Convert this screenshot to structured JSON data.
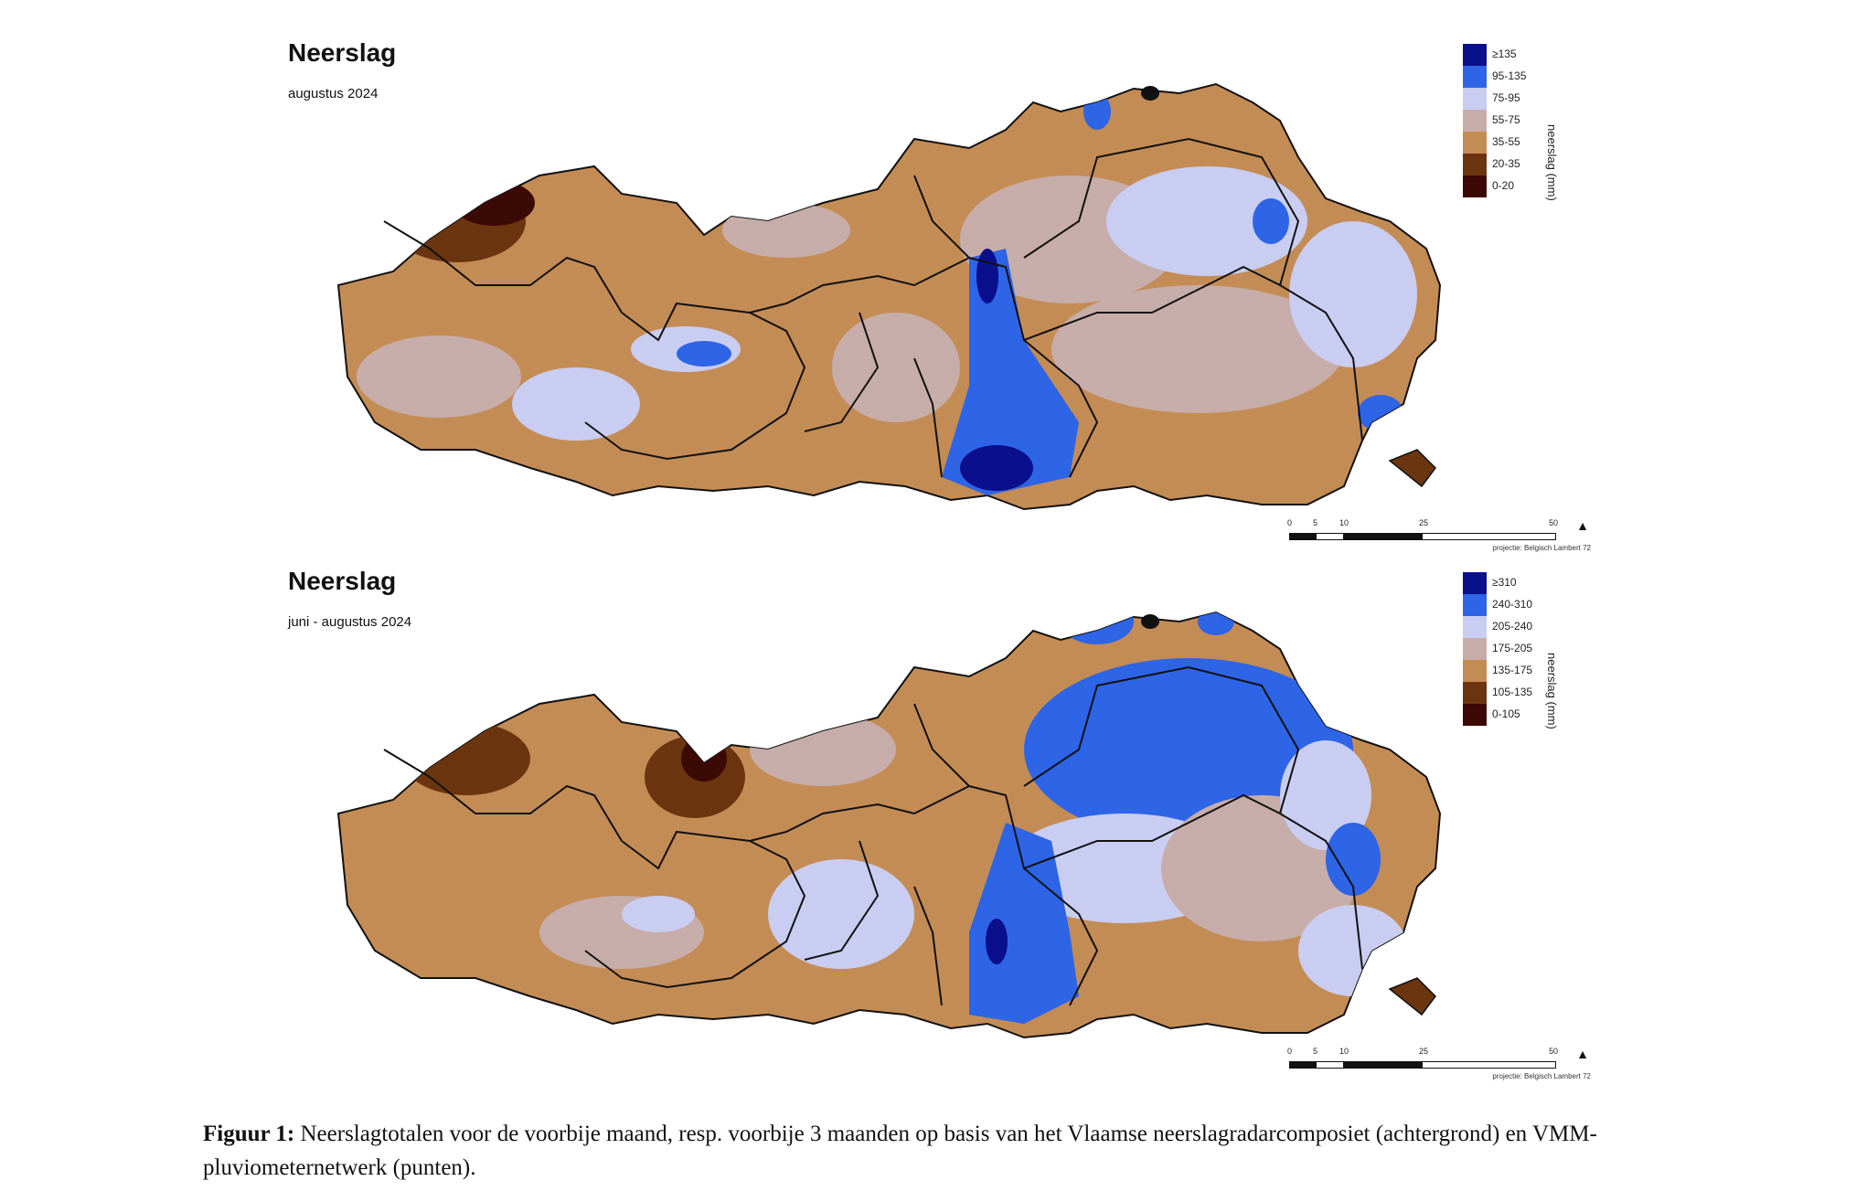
{
  "panels": [
    {
      "title": "Neerslag",
      "subtitle": "augustus 2024",
      "legend": {
        "unit": "neerslag (mm)",
        "classes": [
          {
            "label": "≥135",
            "color": "#0a0f8c"
          },
          {
            "label": "95-135",
            "color": "#2e64e6"
          },
          {
            "label": "75-95",
            "color": "#c9cdf2"
          },
          {
            "label": "55-75",
            "color": "#c7adaa"
          },
          {
            "label": "35-55",
            "color": "#c48c55"
          },
          {
            "label": "20-35",
            "color": "#6b3510"
          },
          {
            "label": "0-20",
            "color": "#3b0a05"
          }
        ]
      },
      "scale": {
        "ticks": [
          "0",
          "5",
          "10",
          "25",
          "50"
        ],
        "unit": "km",
        "projection": "projectie: Belgisch Lambert 72"
      },
      "dominant_color": "#c48c55"
    },
    {
      "title": "Neerslag",
      "subtitle": "juni - augustus 2024",
      "legend": {
        "unit": "neerslag (mm)",
        "classes": [
          {
            "label": "≥310",
            "color": "#0a0f8c"
          },
          {
            "label": "240-310",
            "color": "#2e64e6"
          },
          {
            "label": "205-240",
            "color": "#c9cdf2"
          },
          {
            "label": "175-205",
            "color": "#c7adaa"
          },
          {
            "label": "135-175",
            "color": "#c48c55"
          },
          {
            "label": "105-135",
            "color": "#6b3510"
          },
          {
            "label": "0-105",
            "color": "#3b0a05"
          }
        ]
      },
      "scale": {
        "ticks": [
          "0",
          "5",
          "10",
          "25",
          "50"
        ],
        "unit": "km",
        "projection": "projectie: Belgisch Lambert 72"
      },
      "dominant_color": "#c48c55"
    }
  ],
  "caption": {
    "label": "Figuur 1:",
    "text": "Neerslagtotalen voor de voorbije maand, resp. voorbije 3 maanden op basis van het Vlaamse neerslagradarcomposiet (achtergrond) en VMM-pluviometernetwerk (punten)."
  }
}
